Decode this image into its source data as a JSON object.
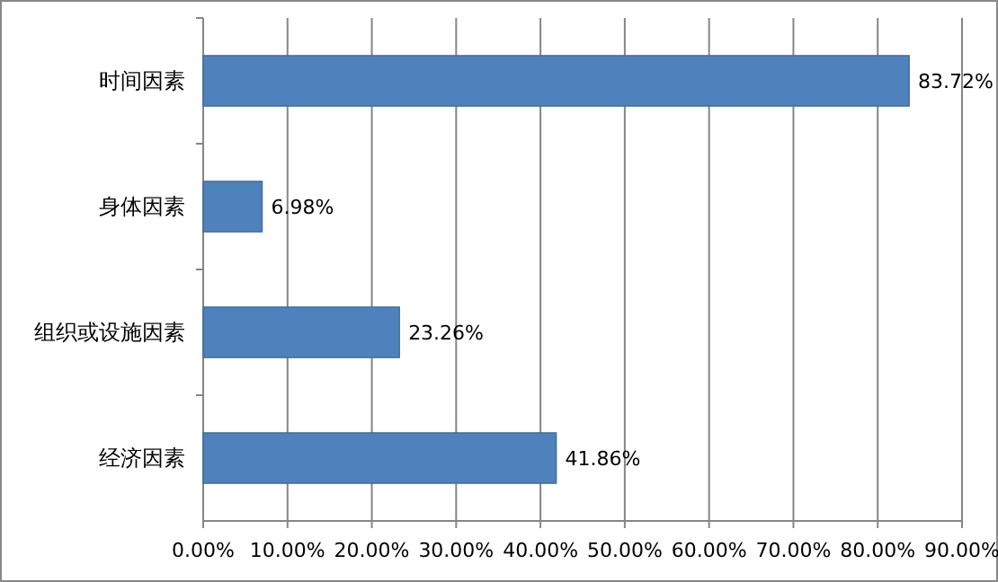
{
  "chart_data": {
    "type": "bar",
    "orientation": "horizontal",
    "categories": [
      "时间因素",
      "身体因素",
      "组织或设施因素",
      "经济因素"
    ],
    "values": [
      83.72,
      6.98,
      23.26,
      41.86
    ],
    "value_labels": [
      "83.72%",
      "6.98%",
      "23.26%",
      "41.86%"
    ],
    "color": "#4f81bd",
    "xlim": [
      0,
      90
    ],
    "xticks": [
      {
        "value": 0,
        "label": "0.00%"
      },
      {
        "value": 10,
        "label": "10.00%"
      },
      {
        "value": 20,
        "label": "20.00%"
      },
      {
        "value": 30,
        "label": "30.00%"
      },
      {
        "value": 40,
        "label": "40.00%"
      },
      {
        "value": 50,
        "label": "50.00%"
      },
      {
        "value": 60,
        "label": "60.00%"
      },
      {
        "value": 70,
        "label": "70.00%"
      },
      {
        "value": 80,
        "label": "80.00%"
      },
      {
        "value": 90,
        "label": "90.00%"
      }
    ],
    "grid": "x"
  }
}
